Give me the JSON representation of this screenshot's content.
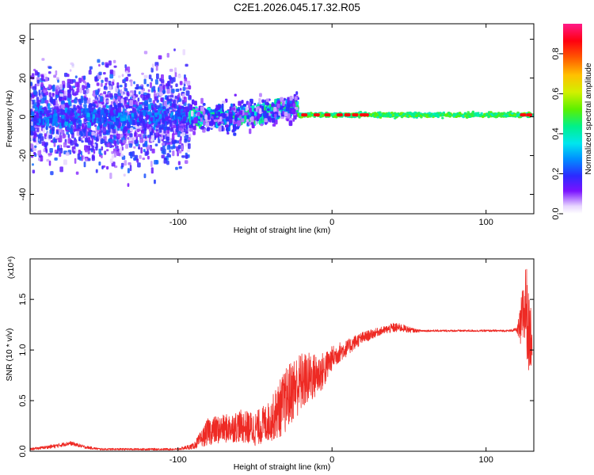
{
  "title": "C2E1.2026.045.17.32.R05",
  "chart_data": [
    {
      "type": "heatmap",
      "name": "spectrogram",
      "title": "C2E1.2026.045.17.32.R05",
      "xlabel": "Height of straight line (km)",
      "ylabel": "Frequency (Hz)",
      "xlim": [
        -196,
        131
      ],
      "ylim": [
        -50,
        48
      ],
      "xticks": [
        -100,
        0,
        100
      ],
      "yticks": [
        -40,
        -20,
        0,
        20,
        40
      ],
      "xtick_labels": [
        "-100",
        "0",
        "100"
      ],
      "ytick_labels": [
        "-40",
        "-20",
        "0",
        "20",
        "40"
      ],
      "colorbar": {
        "label": "Normalized spectral amplitude",
        "range": [
          0,
          0.95
        ],
        "ticks": [
          0.0,
          0.2,
          0.4,
          0.6,
          0.8
        ],
        "tick_labels": [
          "0.0",
          "0.2",
          "0.4",
          "0.6",
          "0.8"
        ]
      },
      "description_points": {
        "segments": [
          {
            "x_range": [
              -196,
              -92
            ],
            "freq_spread_hz": 50,
            "amplitude": "low (0.05-0.25)"
          },
          {
            "x_range": [
              -92,
              -22
            ],
            "freq_spread_hz": 8,
            "amplitude": "medium (0.2-0.5)"
          },
          {
            "x_range": [
              -22,
              131
            ],
            "freq_spread_hz": 2.5,
            "amplitude": "high (0.4-0.95)"
          }
        ],
        "peak_points_x": [
          -18,
          -10,
          -3,
          5,
          10,
          15,
          20,
          22,
          124,
          128
        ]
      }
    },
    {
      "type": "line",
      "name": "snr",
      "xlabel": "Height of straight line (km)",
      "ylabel": "SNR (10 * v/v)",
      "y_scale_label": "(x10⁴)",
      "xlim": [
        -196,
        131
      ],
      "ylim": [
        0,
        1.9
      ],
      "xticks": [
        -100,
        0,
        100
      ],
      "yticks": [
        0.0,
        0.5,
        1.0,
        1.5
      ],
      "xtick_labels": [
        "-100",
        "0",
        "100"
      ],
      "ytick_labels": [
        "0.0",
        "0.5",
        "1.0",
        "1.5"
      ],
      "series": [
        {
          "name": "SNR",
          "color": "#ee2a24",
          "x": [
            -196,
            -180,
            -170,
            -160,
            -150,
            -140,
            -120,
            -100,
            -90,
            -85,
            -80,
            -70,
            -60,
            -50,
            -40,
            -35,
            -30,
            -25,
            -20,
            -15,
            -10,
            -5,
            0,
            5,
            10,
            15,
            20,
            25,
            30,
            35,
            40,
            45,
            50,
            55,
            60,
            80,
            100,
            110,
            115,
            120,
            122,
            124,
            126,
            128,
            130
          ],
          "y": [
            0.02,
            0.05,
            0.08,
            0.04,
            0.02,
            0.02,
            0.02,
            0.02,
            0.05,
            0.12,
            0.2,
            0.22,
            0.25,
            0.22,
            0.3,
            0.4,
            0.5,
            0.62,
            0.68,
            0.72,
            0.75,
            0.8,
            0.92,
            0.98,
            1.02,
            1.08,
            1.12,
            1.15,
            1.18,
            1.2,
            1.22,
            1.22,
            1.2,
            1.19,
            1.19,
            1.19,
            1.19,
            1.19,
            1.19,
            1.2,
            1.2,
            1.35,
            1.45,
            1.1,
            1.2
          ],
          "noise_amplitude": [
            0.01,
            0.02,
            0.02,
            0.015,
            0.01,
            0.01,
            0.01,
            0.01,
            0.03,
            0.08,
            0.14,
            0.14,
            0.16,
            0.17,
            0.2,
            0.28,
            0.32,
            0.32,
            0.3,
            0.26,
            0.22,
            0.18,
            0.12,
            0.1,
            0.08,
            0.07,
            0.06,
            0.05,
            0.04,
            0.04,
            0.05,
            0.04,
            0.03,
            0.015,
            0.01,
            0.01,
            0.01,
            0.01,
            0.01,
            0.02,
            0.2,
            0.35,
            0.45,
            0.4,
            0.3
          ]
        }
      ]
    }
  ]
}
